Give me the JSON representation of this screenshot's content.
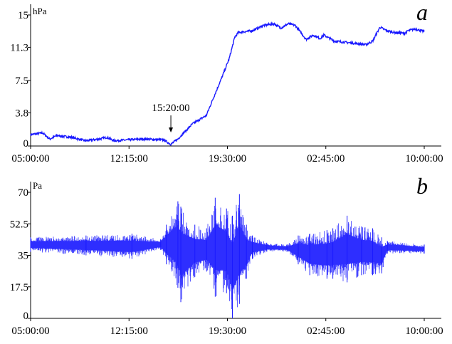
{
  "chart_data": [
    {
      "type": "line",
      "panel_label": "a",
      "ylabel": "hPa",
      "ylim": [
        0,
        15
      ],
      "yticks": [
        "0",
        "3.8",
        "7.5",
        "11.3",
        "15"
      ],
      "ytick_values": [
        0,
        3.8,
        7.5,
        11.3,
        15
      ],
      "xticks": [
        "05:00:00",
        "12:15:00",
        "19:30:00",
        "02:45:00",
        "10:00:00"
      ],
      "xlim": [
        "05:00",
        "10:00 (+1 day)"
      ],
      "color": "#1a1aff",
      "annotation": {
        "text": "15:20:00",
        "time": "15:20",
        "arrow": "down"
      },
      "series": [
        {
          "time": [
            "05:00",
            "05:53",
            "06:25",
            "06:56",
            "07:59",
            "09:02",
            "10:05",
            "10:37",
            "11:08",
            "13:14",
            "14:48",
            "15:20",
            "15:51",
            "16:54",
            "17:57",
            "18:28",
            "19:00",
            "19:38",
            "20:03",
            "20:19",
            "21:21",
            "22:09",
            "22:56",
            "23:27",
            "23:59",
            "00:30",
            "01:18",
            "01:49",
            "02:20",
            "02:36",
            "03:23",
            "04:38",
            "05:41",
            "06:12",
            "06:44",
            "07:15",
            "07:46",
            "08:34",
            "08:49",
            "09:21",
            "10:00"
          ],
          "values": [
            1.3,
            1.5,
            0.8,
            1.2,
            1.0,
            0.6,
            0.8,
            1.0,
            0.6,
            0.8,
            0.7,
            0.2,
            0.8,
            2.5,
            3.5,
            5.5,
            7.5,
            10.0,
            12.5,
            13.0,
            13.2,
            13.8,
            14.0,
            13.5,
            14.0,
            13.8,
            12.2,
            12.7,
            12.3,
            12.7,
            12.0,
            11.8,
            11.6,
            12.0,
            13.6,
            13.2,
            13.0,
            12.9,
            13.2,
            13.4,
            13.1
          ]
        }
      ]
    },
    {
      "type": "area",
      "panel_label": "b",
      "ylabel": "Pa",
      "ylim": [
        0,
        70
      ],
      "yticks": [
        "0",
        "17.5",
        "35",
        "52.5",
        "70"
      ],
      "ytick_values": [
        0,
        17.5,
        35,
        52.5,
        70
      ],
      "xticks": [
        "05:00:00",
        "12:15:00",
        "19:30:00",
        "02:45:00",
        "10:00:00"
      ],
      "xlim": [
        "05:00",
        "10:00 (+1 day)"
      ],
      "color": "#1a1aff",
      "series": [
        {
          "time": [
            "05:00",
            "09:05",
            "12:28",
            "14:35",
            "15:00",
            "15:51",
            "16:04",
            "17:06",
            "17:58",
            "18:36",
            "19:26",
            "19:52",
            "20:23",
            "20:54",
            "21:20",
            "22:24",
            "23:53",
            "00:43",
            "01:34",
            "02:50",
            "03:16",
            "04:19",
            "05:23",
            "06:12",
            "06:52",
            "07:17",
            "10:00"
          ],
          "upper": [
            45,
            46,
            47,
            44,
            52,
            65,
            62,
            52,
            50,
            67,
            61,
            57,
            69,
            52,
            46,
            42,
            41,
            46,
            47,
            49,
            50,
            57,
            51,
            50,
            45,
            43,
            41
          ],
          "lower": [
            37,
            35,
            33,
            38,
            30,
            17,
            9,
            23,
            26,
            12,
            14,
            0,
            8,
            22,
            33,
            37,
            37,
            30,
            24,
            22,
            22,
            20,
            24,
            24,
            25,
            36,
            36
          ]
        }
      ]
    }
  ]
}
